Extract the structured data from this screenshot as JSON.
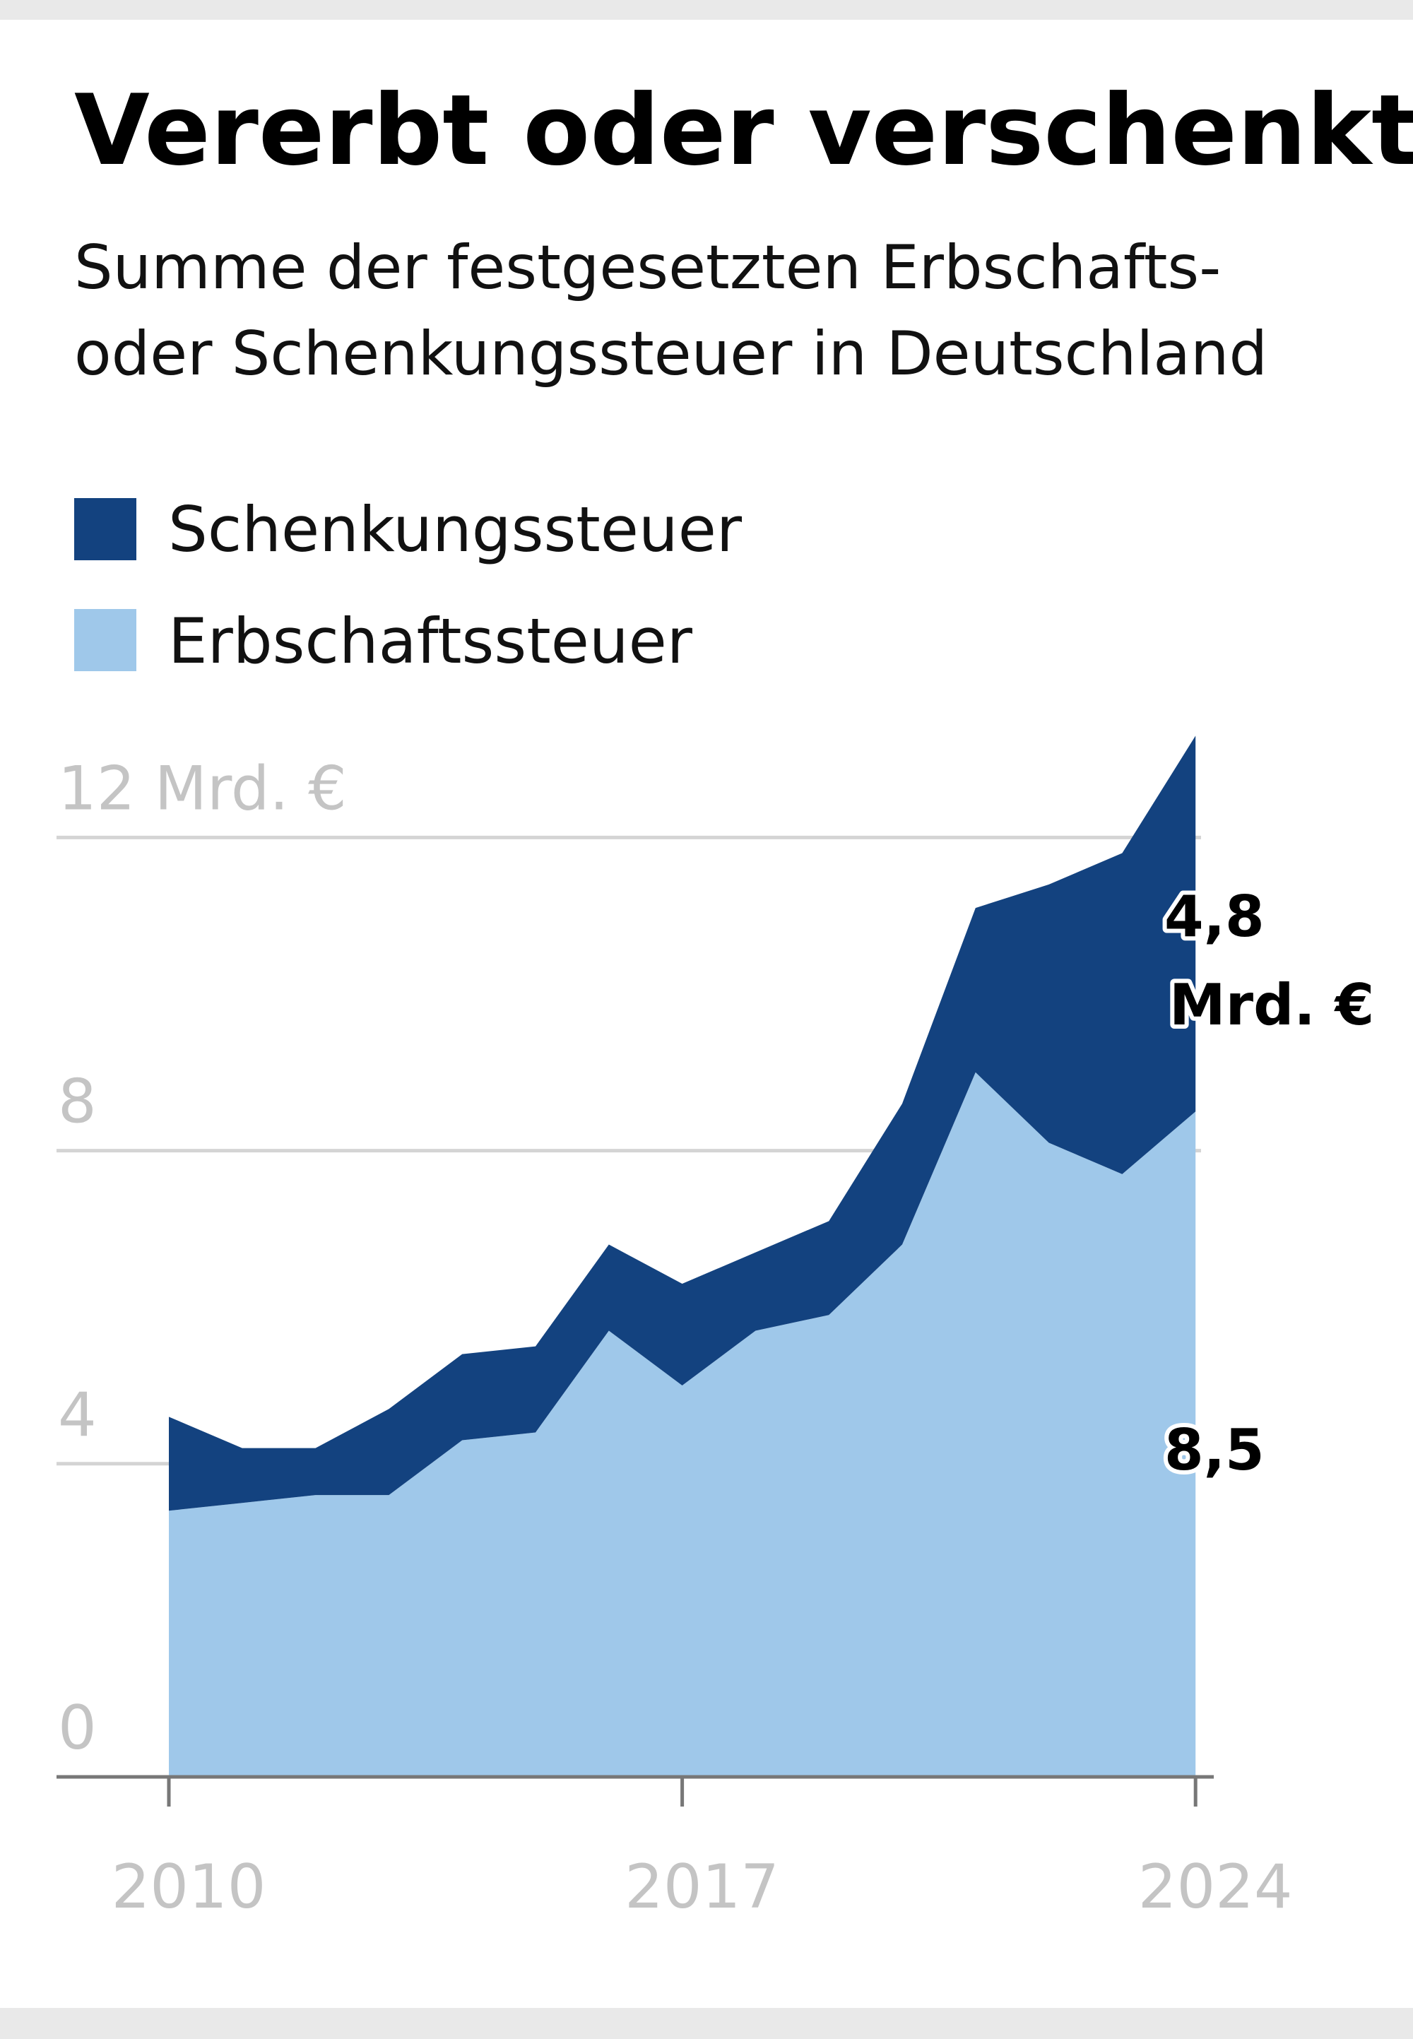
{
  "chart_data": {
    "type": "area",
    "stacked": true,
    "title": "Vererbt oder verschenkt",
    "subtitle": [
      "Summe der festgesetzten Erbschafts-",
      "oder Schenkungssteuer in Deutschland"
    ],
    "x": [
      2010,
      2011,
      2012,
      2013,
      2014,
      2015,
      2016,
      2017,
      2018,
      2019,
      2020,
      2021,
      2022,
      2023,
      2024
    ],
    "series": [
      {
        "name": "Erbschaftssteuer",
        "color": "#9fc8ea",
        "values": [
          3.4,
          3.5,
          3.6,
          3.6,
          4.3,
          4.4,
          5.7,
          5.0,
          5.7,
          5.9,
          6.8,
          9.0,
          8.1,
          7.7,
          8.5
        ]
      },
      {
        "name": "Schenkungssteuer",
        "color": "#13427f",
        "values": [
          1.2,
          0.7,
          0.6,
          1.1,
          1.1,
          1.1,
          1.1,
          1.3,
          1.0,
          1.2,
          1.8,
          2.1,
          3.3,
          4.1,
          4.8
        ]
      }
    ],
    "legend": {
      "placement": "top-left",
      "order": [
        "Schenkungssteuer",
        "Erbschaftssteuer"
      ]
    },
    "ylim": [
      0,
      13.3
    ],
    "yticks": [
      0,
      4,
      8,
      12
    ],
    "ytick_labels": [
      "0",
      "4",
      "8",
      "12 Mrd. €"
    ],
    "xticks": [
      2010,
      2017,
      2024
    ],
    "xtick_labels": [
      "2010",
      "2017",
      "2024"
    ],
    "grid": "horizontal",
    "annotations": [
      {
        "series": "Schenkungssteuer",
        "lines": [
          "4,8",
          "Mrd. €"
        ]
      },
      {
        "series": "Erbschaftssteuer",
        "lines": [
          "8,5"
        ]
      }
    ]
  }
}
